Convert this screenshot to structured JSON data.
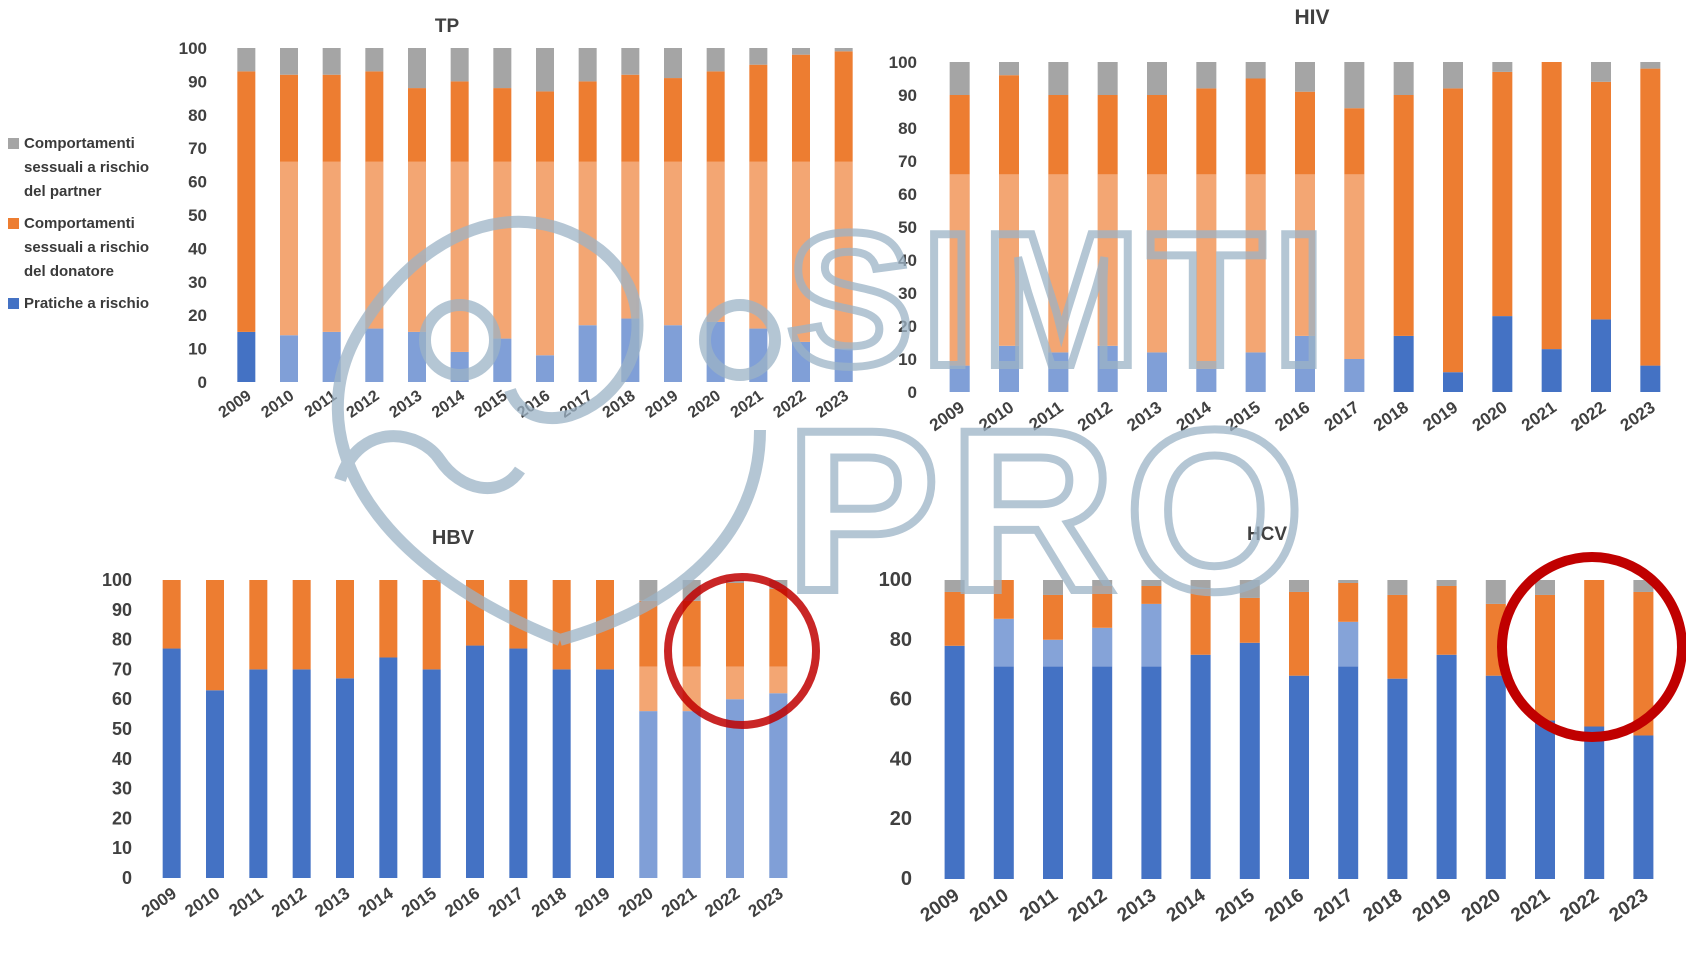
{
  "colors": {
    "pratiche": "#4472c4",
    "pratiche_light": "#8eaadb",
    "donatore": "#ed7d31",
    "donatore_light": "#f4b183",
    "partner": "#a5a5a5",
    "watermark": "#9cb3c6",
    "highlight": "#c00000"
  },
  "legend": [
    {
      "label": "Comportamenti\nsessuali a rischio\ndel partner",
      "color_key": "partner"
    },
    {
      "label": "Comportamenti\nsessuali a rischio\ndel donatore",
      "color_key": "donatore"
    },
    {
      "label": "Pratiche a rischio",
      "color_key": "pratiche"
    }
  ],
  "watermark": {
    "line1": "SIMTI",
    "line2": "PRO"
  },
  "chart_data": [
    {
      "id": "tp",
      "type": "bar",
      "stacked": true,
      "title": "TP",
      "categories": [
        "2009",
        "2010",
        "2011",
        "2012",
        "2013",
        "2014",
        "2015",
        "2016",
        "2017",
        "2018",
        "2019",
        "2020",
        "2021",
        "2022",
        "2023"
      ],
      "ylim": [
        0,
        100
      ],
      "yticks": [
        0,
        10,
        20,
        30,
        40,
        50,
        60,
        70,
        80,
        90,
        100
      ],
      "series": [
        {
          "name": "Pratiche a rischio",
          "color_key": "pratiche",
          "values": [
            15,
            14,
            15,
            16,
            15,
            9,
            13,
            8,
            17,
            19,
            17,
            18,
            16,
            12,
            10
          ]
        },
        {
          "name": "Comportamenti sessuali a rischio del donatore",
          "color_key": "donatore",
          "values": [
            78,
            78,
            77,
            77,
            73,
            81,
            75,
            79,
            73,
            73,
            74,
            75,
            79,
            86,
            89
          ]
        },
        {
          "name": "Comportamenti sessuali a rischio del partner",
          "color_key": "partner",
          "values": [
            7,
            8,
            8,
            7,
            12,
            10,
            12,
            13,
            10,
            8,
            9,
            7,
            5,
            2,
            1
          ]
        }
      ]
    },
    {
      "id": "hiv",
      "type": "bar",
      "stacked": true,
      "title": "HIV",
      "categories": [
        "2009",
        "2010",
        "2011",
        "2012",
        "2013",
        "2014",
        "2015",
        "2016",
        "2017",
        "2018",
        "2019",
        "2020",
        "2021",
        "2022",
        "2023"
      ],
      "ylim": [
        0,
        100
      ],
      "yticks": [
        0,
        10,
        20,
        30,
        40,
        50,
        60,
        70,
        80,
        90,
        100
      ],
      "series": [
        {
          "name": "Pratiche a rischio",
          "color_key": "pratiche",
          "values": [
            8,
            14,
            12,
            14,
            12,
            7,
            12,
            17,
            10,
            17,
            6,
            23,
            13,
            22,
            8
          ]
        },
        {
          "name": "Comportamenti sessuali a rischio del donatore",
          "color_key": "donatore",
          "values": [
            82,
            82,
            78,
            76,
            78,
            85,
            83,
            74,
            76,
            73,
            86,
            74,
            87,
            72,
            90
          ]
        },
        {
          "name": "Comportamenti sessuali a rischio del partner",
          "color_key": "partner",
          "values": [
            10,
            4,
            10,
            10,
            10,
            8,
            5,
            9,
            14,
            10,
            8,
            3,
            0,
            6,
            2
          ]
        }
      ]
    },
    {
      "id": "hbv",
      "type": "bar",
      "stacked": true,
      "title": "HBV",
      "categories": [
        "2009",
        "2010",
        "2011",
        "2012",
        "2013",
        "2014",
        "2015",
        "2016",
        "2017",
        "2018",
        "2019",
        "2020",
        "2021",
        "2022",
        "2023"
      ],
      "ylim": [
        0,
        100
      ],
      "yticks": [
        0,
        10,
        20,
        30,
        40,
        50,
        60,
        70,
        80,
        90,
        100
      ],
      "series": [
        {
          "name": "Pratiche a rischio",
          "color_key": "pratiche",
          "values": [
            77,
            63,
            70,
            70,
            67,
            74,
            70,
            78,
            77,
            70,
            70,
            56,
            56,
            60,
            62
          ]
        },
        {
          "name": "Comportamenti sessuali a rischio del donatore",
          "color_key": "donatore",
          "values": [
            23,
            37,
            30,
            30,
            33,
            26,
            30,
            22,
            23,
            30,
            30,
            37,
            37,
            39,
            35
          ]
        },
        {
          "name": "Comportamenti sessuali a rischio del partner",
          "color_key": "partner",
          "values": [
            0,
            0,
            0,
            0,
            0,
            0,
            0,
            0,
            0,
            0,
            0,
            7,
            7,
            1,
            3
          ]
        }
      ]
    },
    {
      "id": "hcv",
      "type": "bar",
      "stacked": true,
      "title": "HCV",
      "categories": [
        "2009",
        "2010",
        "2011",
        "2012",
        "2013",
        "2014",
        "2015",
        "2016",
        "2017",
        "2018",
        "2019",
        "2020",
        "2021",
        "2022",
        "2023"
      ],
      "ylim": [
        0,
        100
      ],
      "yticks": [
        0,
        20,
        40,
        60,
        80,
        100
      ],
      "series": [
        {
          "name": "Pratiche a rischio",
          "color_key": "pratiche",
          "values": [
            78,
            87,
            80,
            84,
            92,
            75,
            79,
            68,
            86,
            67,
            75,
            68,
            53,
            51,
            48
          ]
        },
        {
          "name": "Comportamenti sessuali a rischio del donatore",
          "color_key": "donatore",
          "values": [
            18,
            13,
            15,
            14,
            6,
            22,
            15,
            28,
            13,
            28,
            23,
            24,
            42,
            49,
            48
          ]
        },
        {
          "name": "Comportamenti sessuali a rischio del partner",
          "color_key": "partner",
          "values": [
            4,
            0,
            5,
            2,
            2,
            3,
            6,
            4,
            1,
            5,
            2,
            8,
            5,
            0,
            4
          ]
        }
      ]
    }
  ]
}
